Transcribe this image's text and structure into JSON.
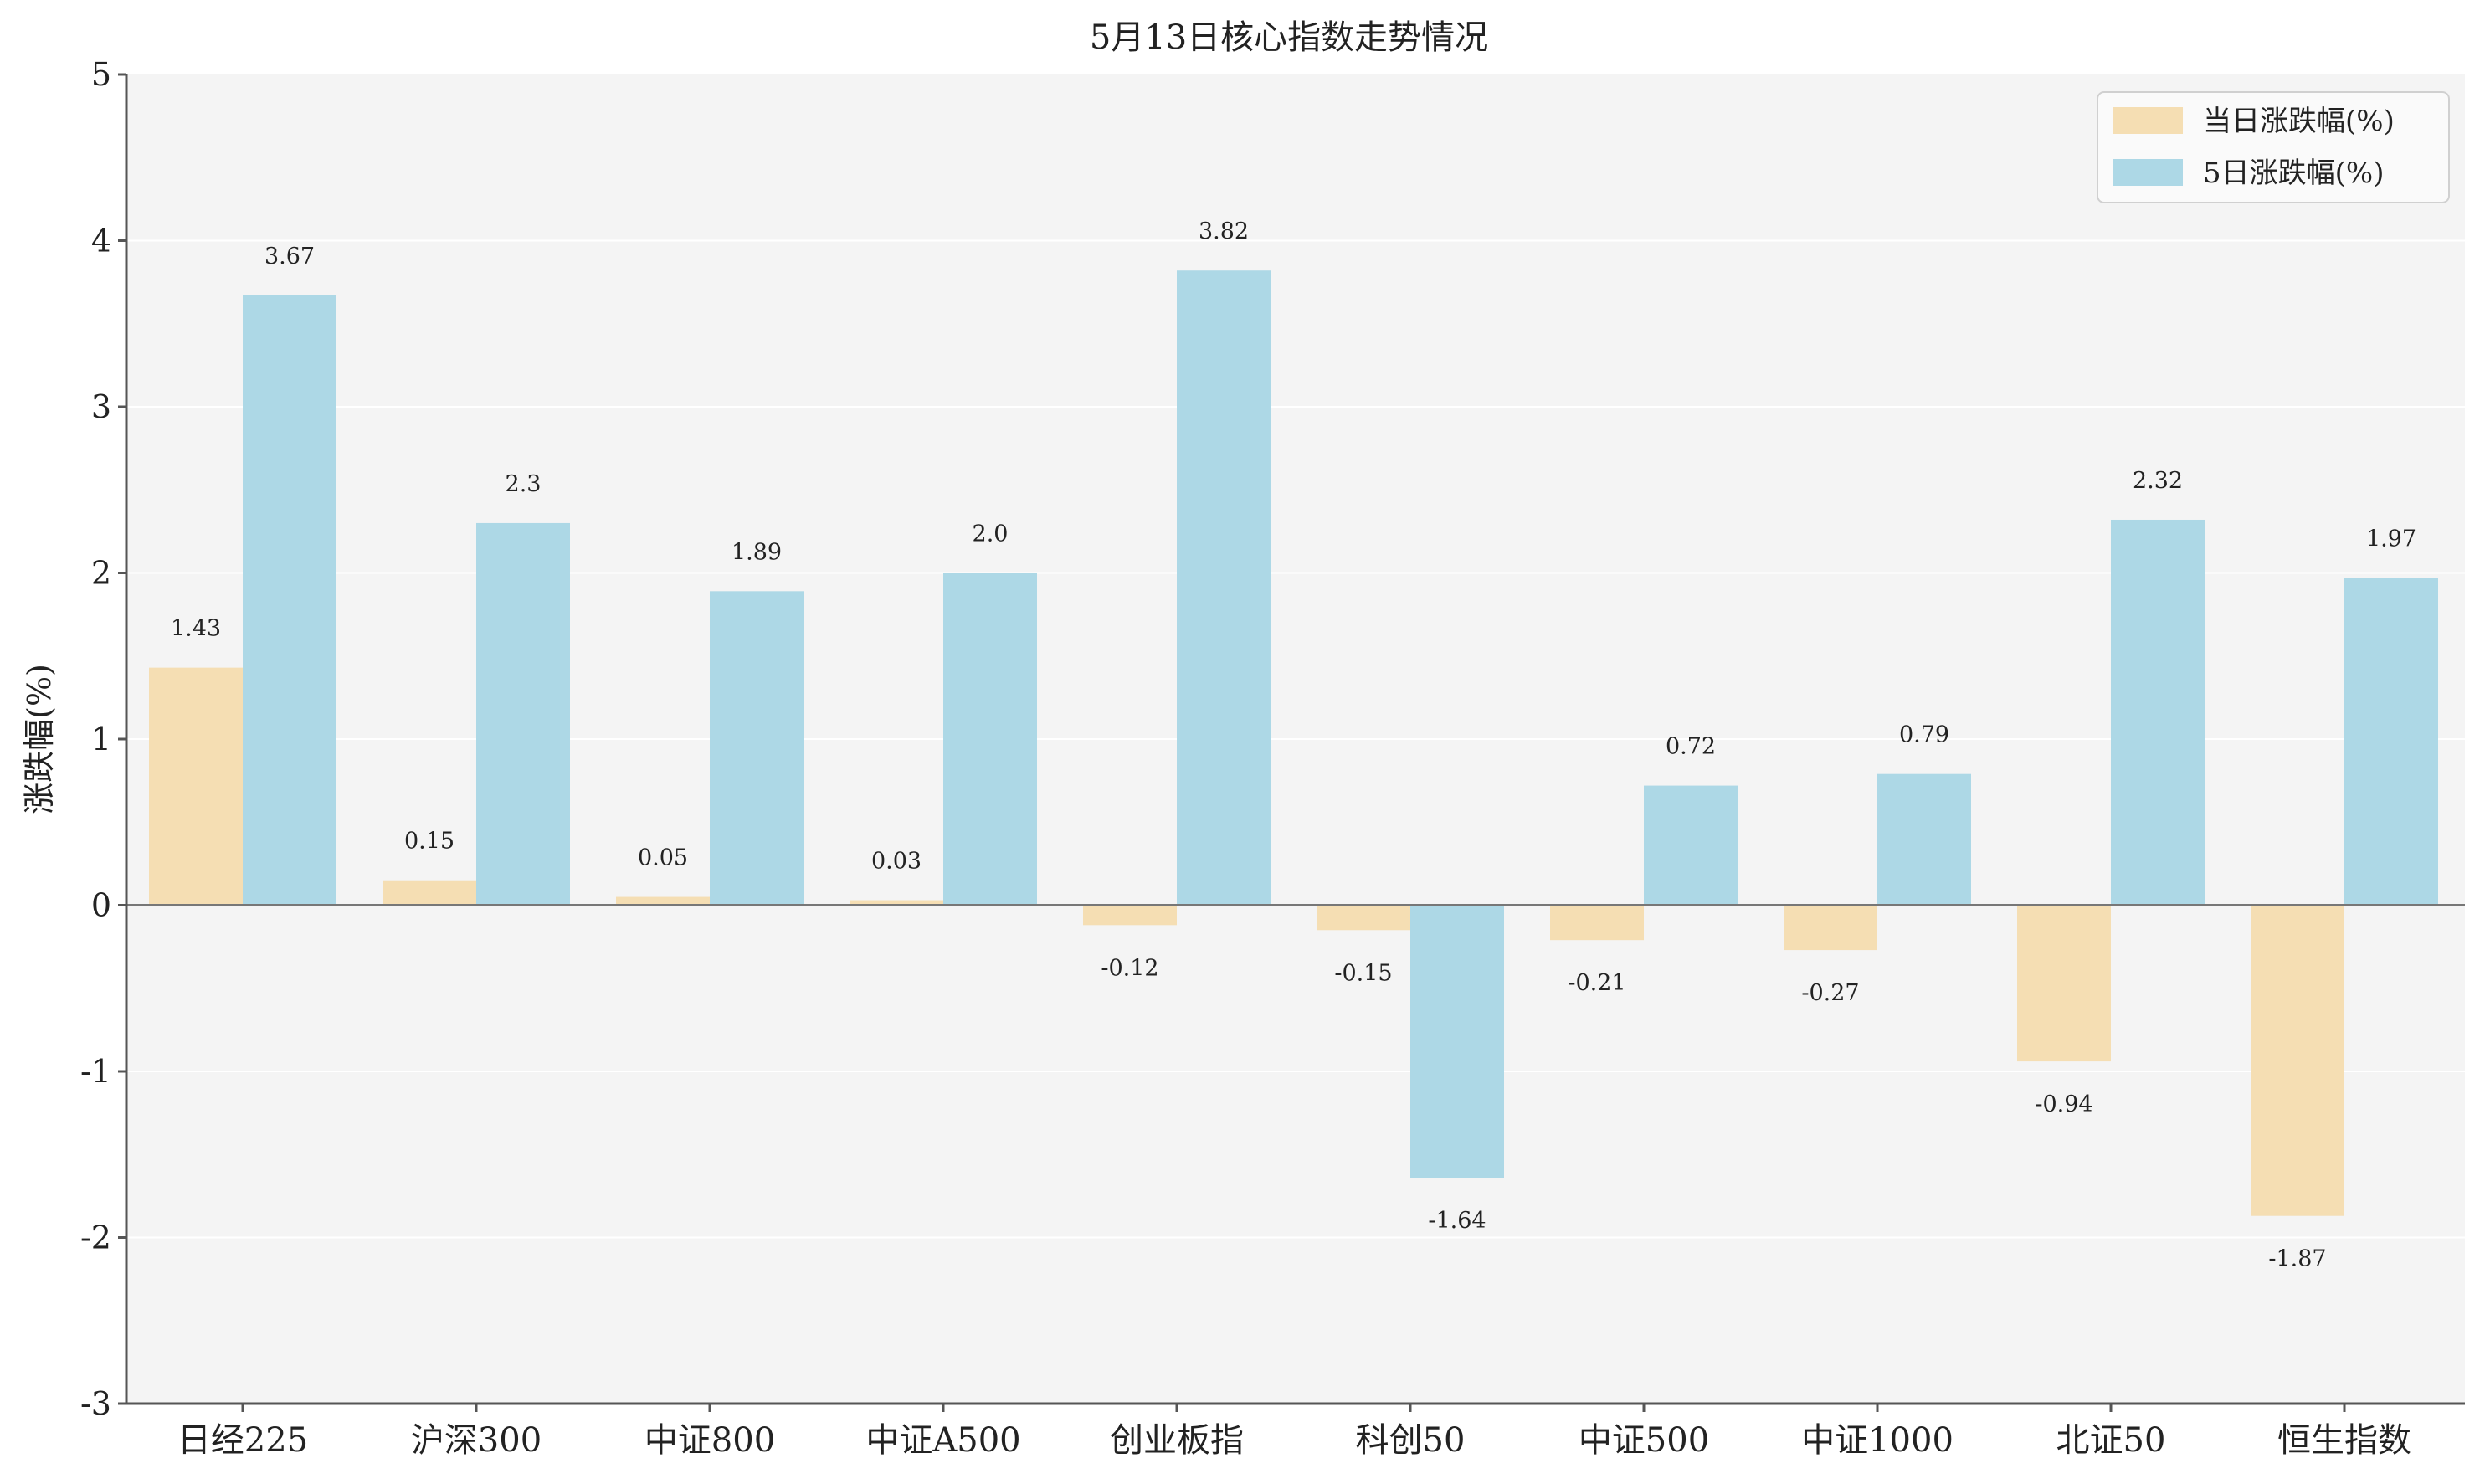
{
  "chart_data": {
    "type": "bar",
    "title": "5月13日核心指数走势情况",
    "xlabel": "",
    "ylabel": "涨跌幅(%)",
    "ylim": [
      -3,
      5
    ],
    "yticks": [
      -3,
      -2,
      -1,
      0,
      1,
      2,
      3,
      4,
      5
    ],
    "grid": true,
    "legend_position": "top-right",
    "categories": [
      "日经225",
      "沪深300",
      "中证800",
      "中证A500",
      "创业板指",
      "科创50",
      "中证500",
      "中证1000",
      "北证50",
      "恒生指数"
    ],
    "series": [
      {
        "name": "当日涨跌幅(%)",
        "color": "#F5DEB3",
        "values": [
          1.43,
          0.15,
          0.05,
          0.03,
          -0.12,
          -0.15,
          -0.21,
          -0.27,
          -0.94,
          -1.87
        ],
        "labels": [
          "1.43",
          "0.15",
          "0.05",
          "0.03",
          "-0.12",
          "-0.15",
          "-0.21",
          "-0.27",
          "-0.94",
          "-1.87"
        ]
      },
      {
        "name": "5日涨跌幅(%)",
        "color": "#ADD8E6",
        "values": [
          3.67,
          2.3,
          1.89,
          2.0,
          3.82,
          -1.64,
          0.72,
          0.79,
          2.32,
          1.97
        ],
        "labels": [
          "3.67",
          "2.3",
          "1.89",
          "2.0",
          "3.82",
          "-1.64",
          "0.72",
          "0.79",
          "2.32",
          "1.97"
        ]
      }
    ]
  },
  "colors": {
    "plot_background": "#F4F4F4",
    "axis": "#555555",
    "grid": "#FFFFFF"
  }
}
